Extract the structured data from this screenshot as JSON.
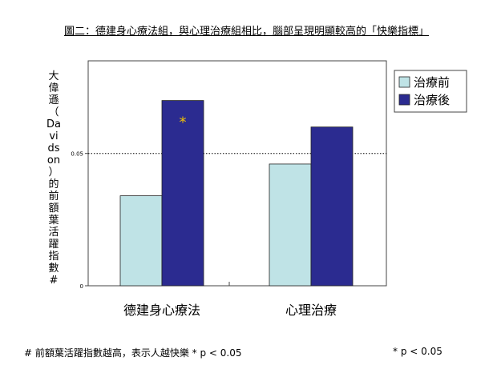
{
  "chart_data": {
    "type": "bar",
    "title": "圖二：德建身心療法組，與心理治療組相比，腦部呈現明顯較高的「快樂指標」",
    "ylabel": "大偉遜（Davidson）的前額葉活躍指數#",
    "xlabel": "",
    "categories": [
      "德建身心療法",
      "心理治療"
    ],
    "series": [
      {
        "name": "治療前",
        "values": [
          0.034,
          0.046
        ],
        "color": "#bfe3e6"
      },
      {
        "name": "治療後",
        "values": [
          0.07,
          0.06
        ],
        "color": "#2b2b90"
      }
    ],
    "ylim": [
      0,
      0.085
    ],
    "yticks": [
      {
        "value": 0,
        "label": "0"
      },
      {
        "value": 0.05,
        "label": "0.05"
      }
    ],
    "reference_line": 0.05,
    "legend_position": "top-right",
    "annotations": [
      {
        "text": "*",
        "category_index": 0,
        "series_index": 1,
        "color": "#f5c400"
      }
    ],
    "footnote": "# 前額葉活躍指數越高，表示人越快樂 * p < 0.05",
    "footnote_right": "* p < 0.05"
  }
}
